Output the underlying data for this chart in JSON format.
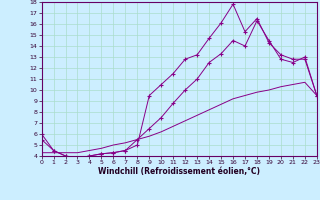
{
  "xlabel": "Windchill (Refroidissement éolien,°C)",
  "bg_color": "#cceeff",
  "grid_color": "#aaddcc",
  "line_color": "#880088",
  "xmin": 0,
  "xmax": 23,
  "ymin": 4,
  "ymax": 18,
  "yticks": [
    4,
    5,
    6,
    7,
    8,
    9,
    10,
    11,
    12,
    13,
    14,
    15,
    16,
    17,
    18
  ],
  "xticks": [
    0,
    1,
    2,
    3,
    4,
    5,
    6,
    7,
    8,
    9,
    10,
    11,
    12,
    13,
    14,
    15,
    16,
    17,
    18,
    19,
    20,
    21,
    22,
    23
  ],
  "line1_x": [
    0,
    1,
    2,
    3,
    4,
    5,
    6,
    7,
    8,
    9,
    10,
    11,
    12,
    13,
    14,
    15,
    16,
    17,
    18,
    19,
    20,
    21,
    22,
    23
  ],
  "line1_y": [
    6.0,
    4.5,
    4.0,
    3.8,
    4.0,
    4.2,
    4.3,
    4.5,
    5.0,
    9.5,
    10.5,
    11.5,
    12.8,
    13.2,
    14.7,
    16.1,
    17.8,
    15.3,
    16.5,
    14.3,
    13.2,
    12.8,
    12.8,
    9.5
  ],
  "line2_x": [
    0,
    1,
    2,
    3,
    4,
    5,
    6,
    7,
    8,
    9,
    10,
    11,
    12,
    13,
    14,
    15,
    16,
    17,
    18,
    19,
    20,
    21,
    22,
    23
  ],
  "line2_y": [
    5.5,
    4.5,
    4.0,
    3.8,
    4.0,
    4.2,
    4.3,
    4.5,
    5.5,
    6.5,
    7.5,
    8.8,
    10.0,
    11.0,
    12.5,
    13.3,
    14.5,
    14.0,
    16.3,
    14.5,
    12.8,
    12.5,
    13.0,
    9.5
  ],
  "line3_x": [
    0,
    1,
    2,
    3,
    4,
    5,
    6,
    7,
    8,
    9,
    10,
    11,
    12,
    13,
    14,
    15,
    16,
    17,
    18,
    19,
    20,
    21,
    22,
    23
  ],
  "line3_y": [
    4.3,
    4.3,
    4.3,
    4.3,
    4.5,
    4.7,
    5.0,
    5.2,
    5.5,
    5.8,
    6.2,
    6.7,
    7.2,
    7.7,
    8.2,
    8.7,
    9.2,
    9.5,
    9.8,
    10.0,
    10.3,
    10.5,
    10.7,
    9.5
  ]
}
